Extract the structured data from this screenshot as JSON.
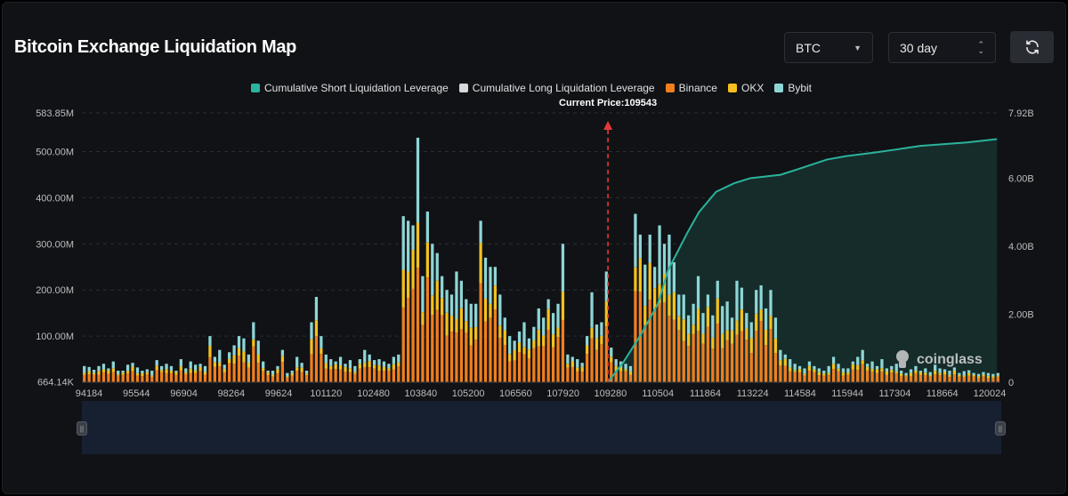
{
  "header": {
    "title": "Bitcoin Exchange Liquidation Map",
    "asset": "BTC",
    "period": "30 day"
  },
  "legend": [
    {
      "name": "Cumulative Short Liquidation Leverage",
      "color": "#2bb39c"
    },
    {
      "name": "Cumulative Long Liquidation Leverage",
      "color": "#d9d9d9"
    },
    {
      "name": "Binance",
      "color": "#f07f1e"
    },
    {
      "name": "OKX",
      "color": "#f4c11e"
    },
    {
      "name": "Bybit",
      "color": "#8ed6d6"
    }
  ],
  "watermark": "coinglass",
  "chart_data": {
    "type": "bar",
    "current_price_label": "Current Price:109543",
    "current_price": 109543,
    "x_ticks": [
      "94184",
      "95544",
      "96904",
      "98264",
      "99624",
      "101120",
      "102480",
      "103840",
      "105200",
      "106560",
      "107920",
      "109280",
      "110504",
      "111864",
      "113224",
      "114584",
      "115944",
      "117304",
      "118664",
      "120024"
    ],
    "y_left_ticks": [
      "583.85M",
      "500.00M",
      "400.00M",
      "300.00M",
      "200.00M",
      "100.00M",
      "664.14K"
    ],
    "y_left_values": [
      583.85,
      500,
      400,
      300,
      200,
      100,
      0.66
    ],
    "y_left_unit": "M",
    "y_right_ticks": [
      "7.92B",
      "6.00B",
      "4.00B",
      "2.00B",
      "0"
    ],
    "y_right_values": [
      7.92,
      6,
      4,
      2,
      0
    ],
    "y_right_unit": "B",
    "x_range": [
      94184,
      121000
    ],
    "stack_series": [
      "Binance",
      "OKX",
      "Bybit"
    ],
    "totals_M": [
      35,
      33,
      27,
      35,
      40,
      30,
      45,
      25,
      25,
      38,
      42,
      32,
      25,
      28,
      25,
      48,
      35,
      40,
      35,
      25,
      50,
      30,
      45,
      38,
      40,
      35,
      100,
      55,
      70,
      38,
      65,
      80,
      100,
      95,
      60,
      130,
      90,
      45,
      25,
      25,
      35,
      70,
      20,
      25,
      55,
      42,
      25,
      130,
      185,
      100,
      60,
      50,
      45,
      55,
      40,
      48,
      35,
      50,
      70,
      60,
      48,
      50,
      45,
      40,
      55,
      60,
      360,
      350,
      340,
      530,
      230,
      370,
      300,
      280,
      230,
      200,
      190,
      240,
      220,
      180,
      170,
      170,
      350,
      270,
      250,
      250,
      190,
      140,
      100,
      90,
      110,
      130,
      95,
      120,
      160,
      140,
      180,
      150,
      170,
      300,
      60,
      55,
      50,
      42,
      100,
      195,
      125,
      130,
      240,
      75,
      50,
      45,
      40,
      35,
      365,
      320,
      255,
      320,
      250,
      340,
      300,
      320,
      260,
      190,
      190,
      145,
      170,
      230,
      150,
      190,
      145,
      220,
      165,
      175,
      140,
      220,
      205,
      150,
      130,
      200,
      210,
      160,
      200,
      140,
      70,
      60,
      50,
      40,
      35,
      30,
      45,
      35,
      30,
      25,
      35,
      55,
      40,
      30,
      30,
      45,
      55,
      70,
      40,
      45,
      35,
      50,
      30,
      35,
      40,
      25,
      20,
      28,
      35,
      25,
      30,
      22,
      38,
      30,
      28,
      25,
      32,
      20,
      24,
      26,
      20,
      18,
      22,
      20,
      18,
      20
    ],
    "current_price_index": 124,
    "cumulative_short_B": [
      0,
      0.6,
      1.4,
      2.3,
      3.3,
      4.4,
      5.0,
      5.6,
      5.85,
      6.0,
      6.1,
      6.3,
      6.55,
      6.65,
      6.75,
      6.85,
      6.95,
      7.05,
      7.15
    ],
    "cumulative_short_x": [
      109543,
      110000,
      110504,
      111000,
      111300,
      111864,
      112200,
      112700,
      113224,
      113700,
      114584,
      115200,
      115944,
      116500,
      117304,
      118000,
      118664,
      120024,
      120900
    ]
  }
}
